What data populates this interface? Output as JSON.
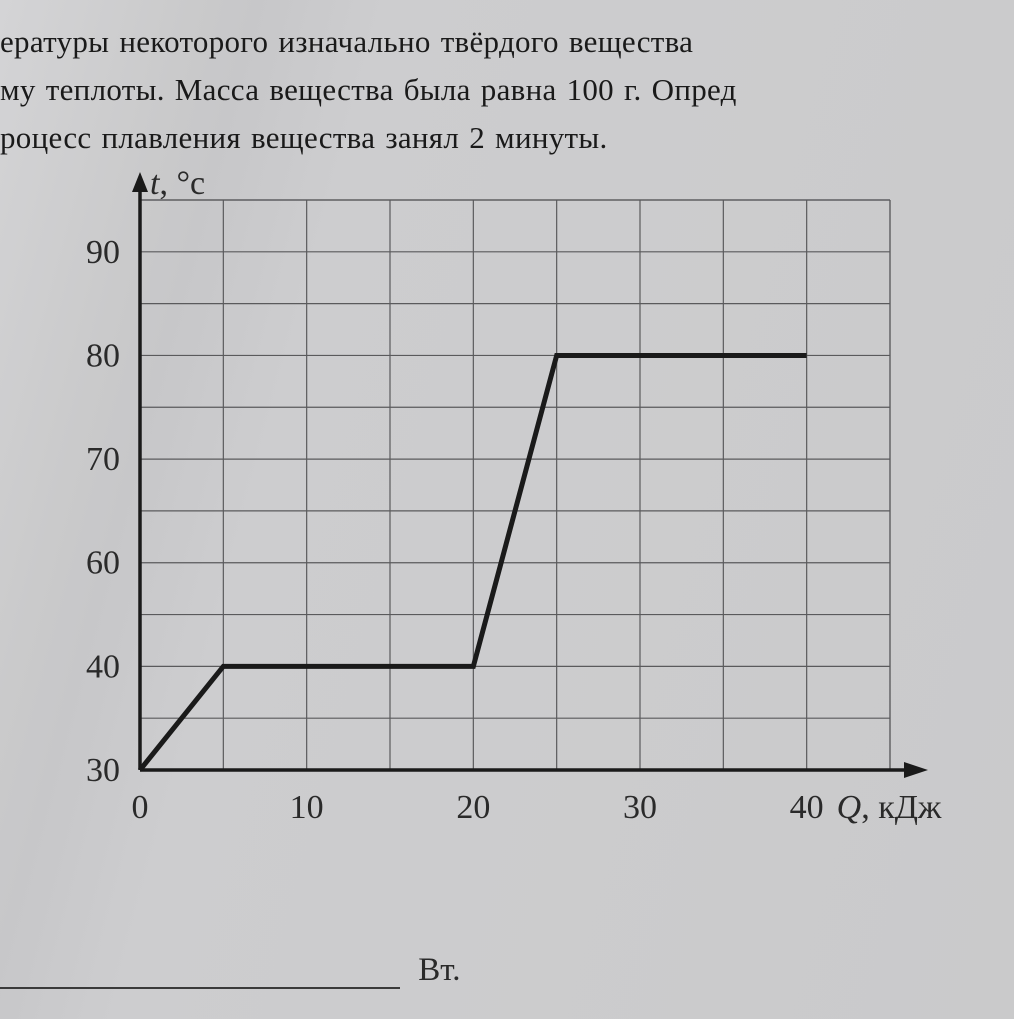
{
  "text": {
    "line1": "ературы   некоторого   изначально   твёрдого   вещества ",
    "line2": "му теплоты. Масса вещества была равна 100 г. Опред",
    "line3": "роцесс плавления вещества занял 2 минуты."
  },
  "chart": {
    "type": "line",
    "y_axis_label": "t, °с",
    "x_axis_label": "Q, кДж",
    "x_ticks": [
      0,
      10,
      20,
      30,
      40
    ],
    "y_ticks": [
      30,
      40,
      60,
      70,
      80,
      90
    ],
    "x_grid_step": 5,
    "y_grid_major": [
      30,
      35,
      40,
      45,
      60,
      65,
      70,
      75,
      80,
      85,
      90,
      95
    ],
    "xlim": [
      0,
      45
    ],
    "ylim": [
      27,
      95
    ],
    "points": [
      {
        "x": 0,
        "y": 30
      },
      {
        "x": 5,
        "y": 40
      },
      {
        "x": 20,
        "y": 40
      },
      {
        "x": 25,
        "y": 80
      },
      {
        "x": 40,
        "y": 80
      }
    ],
    "colors": {
      "background": "#cacacb",
      "grid": "#5a5a5c",
      "axis": "#1a1a1a",
      "line": "#1a1a1a",
      "text": "#2a2a2a"
    },
    "stroke": {
      "grid_width": 1.2,
      "axis_width": 3.5,
      "line_width": 5
    },
    "label_fontsize": 34,
    "tick_fontsize": 34
  },
  "answer": {
    "unit": "Вт."
  }
}
